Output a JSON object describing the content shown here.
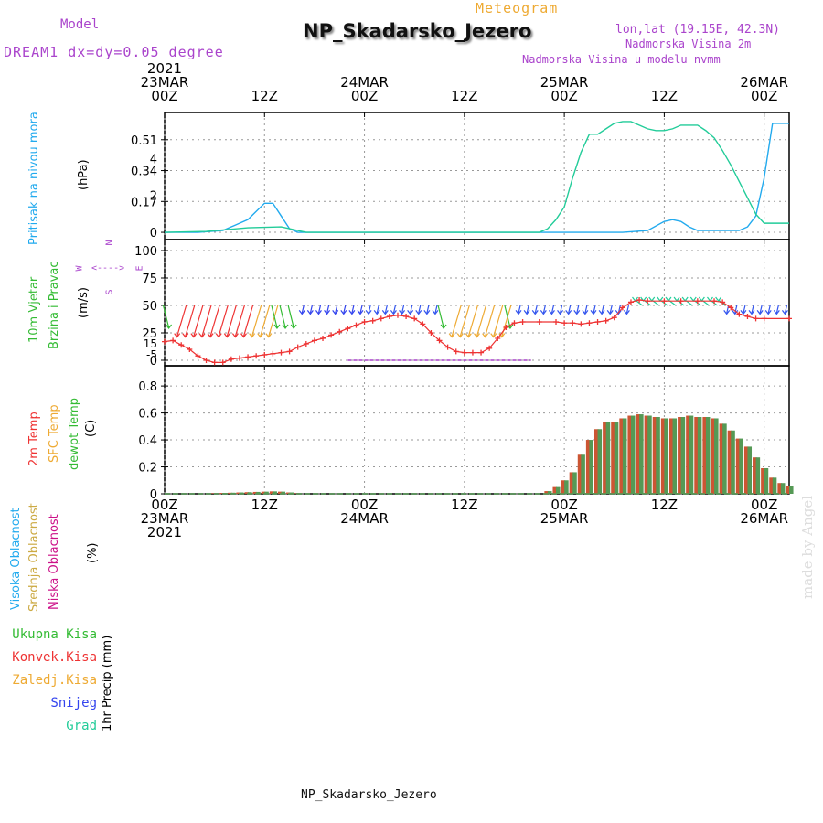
{
  "header": {
    "model_label": "Model",
    "model_name": "DREAM1 dx=dy=0.05 degree",
    "chart_type": "Meteogram",
    "station": "NP_Skadarsko_Jezero",
    "lonlat": "lon,lat (19.15E, 42.3N)",
    "altitude": "Nadmorska Visina 2m",
    "model_altitude": "Nadmorska Visina u modelu nvmm",
    "footer_station": "NP_Skadarsko_Jezero",
    "credit": "made by Angel"
  },
  "colors": {
    "cyan": "#22aaee",
    "teal": "#22cc99",
    "red": "#ee3333",
    "green": "#33bb33",
    "orange": "#eeaa33",
    "blue": "#3344ee",
    "purple": "#aa44cc",
    "magenta": "#cc1188",
    "darkgreen": "#559955",
    "fill_bar": "#cc5533",
    "wind_blue": "#3355ee"
  },
  "time_axis": {
    "top_labels": [
      {
        "hour": 0,
        "line1": "2021",
        "line2": "23MAR",
        "line3": "00Z"
      },
      {
        "hour": 12,
        "line1": "",
        "line2": "",
        "line3": "12Z"
      },
      {
        "hour": 24,
        "line1": "",
        "line2": "24MAR",
        "line3": "00Z"
      },
      {
        "hour": 36,
        "line1": "",
        "line2": "",
        "line3": "12Z"
      },
      {
        "hour": 48,
        "line1": "",
        "line2": "25MAR",
        "line3": "00Z"
      },
      {
        "hour": 60,
        "line1": "",
        "line2": "",
        "line3": "12Z"
      },
      {
        "hour": 72,
        "line1": "",
        "line2": "26MAR",
        "line3": "00Z"
      }
    ],
    "bottom_labels": [
      {
        "hour": 0,
        "line1": "00Z",
        "line2": "23MAR",
        "line3": "2021"
      },
      {
        "hour": 12,
        "line1": "12Z",
        "line2": "",
        "line3": ""
      },
      {
        "hour": 24,
        "line1": "00Z",
        "line2": "24MAR",
        "line3": ""
      },
      {
        "hour": 36,
        "line1": "12Z",
        "line2": "",
        "line3": ""
      },
      {
        "hour": 48,
        "line1": "00Z",
        "line2": "25MAR",
        "line3": ""
      },
      {
        "hour": 60,
        "line1": "12Z",
        "line2": "",
        "line3": ""
      },
      {
        "hour": 72,
        "line1": "00Z",
        "line2": "26MAR",
        "line3": ""
      }
    ]
  },
  "side_labels": {
    "p1_a": "Pritisak na nivou mora",
    "p1_unit": "(hPa)",
    "p2_a": "10m Vjetar",
    "p2_b": "Brzina i Pravac",
    "p2_unit": "(m/s)",
    "compass_n": "N",
    "compass_s": "S",
    "compass_w": "W",
    "compass_e": "E",
    "compass_arrows": "<---->",
    "p3_a": "2m Temp",
    "p3_b": "SFC Temp",
    "p3_c": "dewpt Temp",
    "p3_unit": "(C)",
    "p4_a": "Visoka Oblacnost",
    "p4_b": "Srednja Oblacnost",
    "p4_c": "Niska Oblacnost",
    "p4_unit": "(%)",
    "p5_unit": "1hr Precip (mm)",
    "legend": [
      "Ukupna Kisa",
      "Konvek.Kisa",
      "Zaledj.Kisa",
      "Snijeg",
      "Grad"
    ]
  },
  "chart_data": [
    {
      "type": "line",
      "name": "Pritisak na nivou mora",
      "ylabel": "(hPa)",
      "ylim": [
        -0.04,
        0.66
      ],
      "yticks": [
        0,
        0.17,
        0.34,
        0.51
      ],
      "yticklabels": [
        "0",
        "0.17",
        "0.34",
        "0.51"
      ],
      "yticks_right": [
        2,
        4
      ],
      "grid": true,
      "series": [
        {
          "color": "cyan",
          "points": [
            [
              0,
              0
            ],
            [
              4,
              0
            ],
            [
              7,
              0.01
            ],
            [
              10,
              0.07
            ],
            [
              12,
              0.16
            ],
            [
              13,
              0.16
            ],
            [
              14,
              0.09
            ],
            [
              15,
              0.02
            ],
            [
              16,
              0
            ],
            [
              46,
              0
            ],
            [
              55,
              0
            ],
            [
              58,
              0.01
            ],
            [
              60,
              0.06
            ],
            [
              61,
              0.07
            ],
            [
              62,
              0.06
            ],
            [
              63,
              0.03
            ],
            [
              64,
              0.01
            ],
            [
              65,
              0.01
            ],
            [
              69,
              0.01
            ],
            [
              70,
              0.03
            ],
            [
              71,
              0.09
            ],
            [
              72,
              0.3
            ],
            [
              73,
              0.6
            ],
            [
              74,
              0.6
            ],
            [
              75,
              0.6
            ]
          ]
        },
        {
          "color": "teal",
          "points": [
            [
              0,
              0
            ],
            [
              5,
              0.005
            ],
            [
              10,
              0.025
            ],
            [
              14,
              0.03
            ],
            [
              16,
              0.01
            ],
            [
              17,
              0
            ],
            [
              45,
              0
            ],
            [
              46,
              0.02
            ],
            [
              47,
              0.07
            ],
            [
              48,
              0.14
            ],
            [
              49,
              0.3
            ],
            [
              50,
              0.44
            ],
            [
              51,
              0.54
            ],
            [
              52,
              0.54
            ],
            [
              53,
              0.57
            ],
            [
              54,
              0.6
            ],
            [
              55,
              0.61
            ],
            [
              56,
              0.61
            ],
            [
              57,
              0.59
            ],
            [
              58,
              0.57
            ],
            [
              59,
              0.56
            ],
            [
              60,
              0.56
            ],
            [
              61,
              0.57
            ],
            [
              62,
              0.59
            ],
            [
              63,
              0.59
            ],
            [
              64,
              0.59
            ],
            [
              65,
              0.56
            ],
            [
              66,
              0.52
            ],
            [
              67,
              0.45
            ],
            [
              68,
              0.37
            ],
            [
              69,
              0.28
            ],
            [
              70,
              0.19
            ],
            [
              71,
              0.1
            ],
            [
              72,
              0.05
            ],
            [
              73,
              0.05
            ],
            [
              75,
              0.05
            ]
          ]
        }
      ]
    },
    {
      "type": "line",
      "name": "10m Vjetar Brzina i Pravac",
      "ylabel": "(m/s)",
      "ylim": [
        -5,
        110
      ],
      "yticks": [
        0,
        25,
        50,
        75,
        100
      ],
      "yticklabels": [
        "0",
        "25",
        "50",
        "75",
        "100"
      ],
      "extra_ticks": [
        5,
        15
      ],
      "grid": true,
      "speed_series": {
        "color": "red",
        "points": [
          [
            0,
            17
          ],
          [
            1,
            18
          ],
          [
            2,
            14
          ],
          [
            3,
            10
          ],
          [
            4,
            4
          ],
          [
            5,
            0
          ],
          [
            6,
            -2
          ],
          [
            7,
            -2
          ],
          [
            8,
            1
          ],
          [
            9,
            2
          ],
          [
            10,
            3
          ],
          [
            11,
            4
          ],
          [
            12,
            5
          ],
          [
            13,
            6
          ],
          [
            14,
            7
          ],
          [
            15,
            8
          ],
          [
            16,
            12
          ],
          [
            17,
            15
          ],
          [
            18,
            18
          ],
          [
            19,
            20
          ],
          [
            20,
            23
          ],
          [
            21,
            26
          ],
          [
            22,
            29
          ],
          [
            23,
            32
          ],
          [
            24,
            35
          ],
          [
            25,
            36
          ],
          [
            26,
            38
          ],
          [
            27,
            40
          ],
          [
            28,
            41
          ],
          [
            29,
            40
          ],
          [
            30,
            38
          ],
          [
            31,
            33
          ],
          [
            32,
            25
          ],
          [
            33,
            18
          ],
          [
            34,
            12
          ],
          [
            35,
            8
          ],
          [
            36,
            7
          ],
          [
            37,
            7
          ],
          [
            38,
            7
          ],
          [
            39,
            11
          ],
          [
            40,
            20
          ],
          [
            41,
            30
          ],
          [
            42,
            34
          ],
          [
            43,
            35
          ],
          [
            45,
            35
          ],
          [
            47,
            35
          ],
          [
            48,
            34
          ],
          [
            49,
            34
          ],
          [
            50,
            33
          ],
          [
            51,
            34
          ],
          [
            52,
            35
          ],
          [
            53,
            36
          ],
          [
            54,
            39
          ],
          [
            55,
            48
          ],
          [
            56,
            53
          ],
          [
            57,
            55
          ],
          [
            58,
            54
          ],
          [
            60,
            54
          ],
          [
            62,
            54
          ],
          [
            64,
            54
          ],
          [
            66,
            54
          ],
          [
            67,
            53
          ],
          [
            68,
            48
          ],
          [
            69,
            42
          ],
          [
            70,
            40
          ],
          [
            71,
            38
          ],
          [
            72,
            38
          ],
          [
            75,
            38
          ]
        ]
      },
      "flat_line": {
        "from": 22,
        "to": 44,
        "value": 0
      },
      "barbs": [
        {
          "from": 0,
          "to": 1,
          "color": "green"
        },
        {
          "from": 1,
          "to": 10,
          "color": "red"
        },
        {
          "from": 10,
          "to": 13,
          "color": "orange"
        },
        {
          "from": 13,
          "to": 16,
          "color": "green"
        },
        {
          "from": 16,
          "to": 24,
          "color": "blue"
        },
        {
          "from": 24,
          "to": 33,
          "color": "wind_blue"
        },
        {
          "from": 33,
          "to": 34,
          "color": "green"
        },
        {
          "from": 34,
          "to": 41,
          "color": "orange"
        },
        {
          "from": 41,
          "to": 42,
          "color": "green"
        },
        {
          "from": 42,
          "to": 56,
          "color": "wind_blue"
        },
        {
          "from": 56,
          "to": 67,
          "color": "teal"
        },
        {
          "from": 67,
          "to": 75,
          "color": "wind_blue"
        }
      ]
    },
    {
      "type": "bar",
      "name": "Temperatura",
      "ylabel": "(C)",
      "ylim": [
        0,
        0.95
      ],
      "yticks": [
        0,
        0.2,
        0.4,
        0.6,
        0.8
      ],
      "yticklabels": [
        "0",
        "0.2",
        "0.4",
        "0.6",
        "0.8"
      ],
      "grid": true,
      "values": [
        [
          6,
          0.004
        ],
        [
          7,
          0.006
        ],
        [
          8,
          0.008
        ],
        [
          9,
          0.01
        ],
        [
          10,
          0.012
        ],
        [
          11,
          0.014
        ],
        [
          12,
          0.016
        ],
        [
          13,
          0.018
        ],
        [
          14,
          0.016
        ],
        [
          15,
          0.01
        ],
        [
          16,
          0.004
        ],
        [
          46,
          0.02
        ],
        [
          47,
          0.05
        ],
        [
          48,
          0.1
        ],
        [
          49,
          0.16
        ],
        [
          50,
          0.29
        ],
        [
          51,
          0.4
        ],
        [
          52,
          0.48
        ],
        [
          53,
          0.53
        ],
        [
          54,
          0.53
        ],
        [
          55,
          0.56
        ],
        [
          56,
          0.58
        ],
        [
          57,
          0.59
        ],
        [
          58,
          0.58
        ],
        [
          59,
          0.57
        ],
        [
          60,
          0.56
        ],
        [
          61,
          0.56
        ],
        [
          62,
          0.57
        ],
        [
          63,
          0.58
        ],
        [
          64,
          0.57
        ],
        [
          65,
          0.57
        ],
        [
          66,
          0.56
        ],
        [
          67,
          0.52
        ],
        [
          68,
          0.47
        ],
        [
          69,
          0.41
        ],
        [
          70,
          0.35
        ],
        [
          71,
          0.27
        ],
        [
          72,
          0.19
        ],
        [
          73,
          0.12
        ],
        [
          74,
          0.08
        ],
        [
          75,
          0.06
        ]
      ]
    }
  ]
}
